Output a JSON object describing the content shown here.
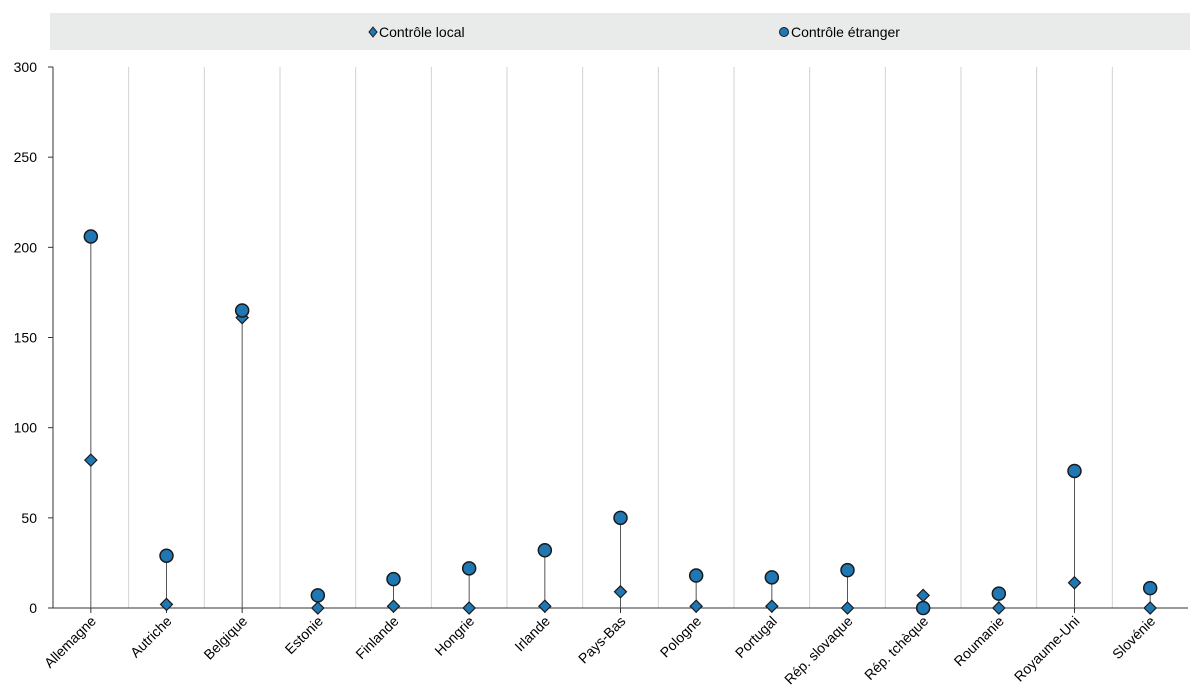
{
  "chart_data": {
    "type": "scatter",
    "title": "",
    "xlabel": "",
    "ylabel": "",
    "ylim": [
      0,
      300
    ],
    "yticks": [
      0,
      50,
      100,
      150,
      200,
      250,
      300
    ],
    "grid": "vertical",
    "legend_position": "top",
    "categories": [
      "Allemagne",
      "Autriche",
      "Belgique",
      "Estonie",
      "Finlande",
      "Hongrie",
      "Irlande",
      "Pays-Bas",
      "Pologne",
      "Portugal",
      "Rép. slovaque",
      "Rép. tchèque",
      "Roumanie",
      "Royaume-Uni",
      "Slovénie"
    ],
    "series": [
      {
        "name": "Contrôle local",
        "marker": "diamond",
        "color": "#1f77b4",
        "values": [
          82,
          2,
          161,
          0,
          1,
          0,
          1,
          9,
          1,
          1,
          0,
          7,
          0,
          14,
          0
        ]
      },
      {
        "name": "Contrôle étranger",
        "marker": "circle",
        "color": "#1f77b4",
        "values": [
          206,
          29,
          165,
          7,
          16,
          22,
          32,
          50,
          18,
          17,
          21,
          0,
          8,
          76,
          11
        ]
      }
    ]
  },
  "colors": {
    "marker_fill": "#1f77b4",
    "marker_stroke": "#1a1a1a",
    "legend_bg": "#e9ebeb",
    "grid": "#cfd3d3",
    "stem": "#555555"
  }
}
